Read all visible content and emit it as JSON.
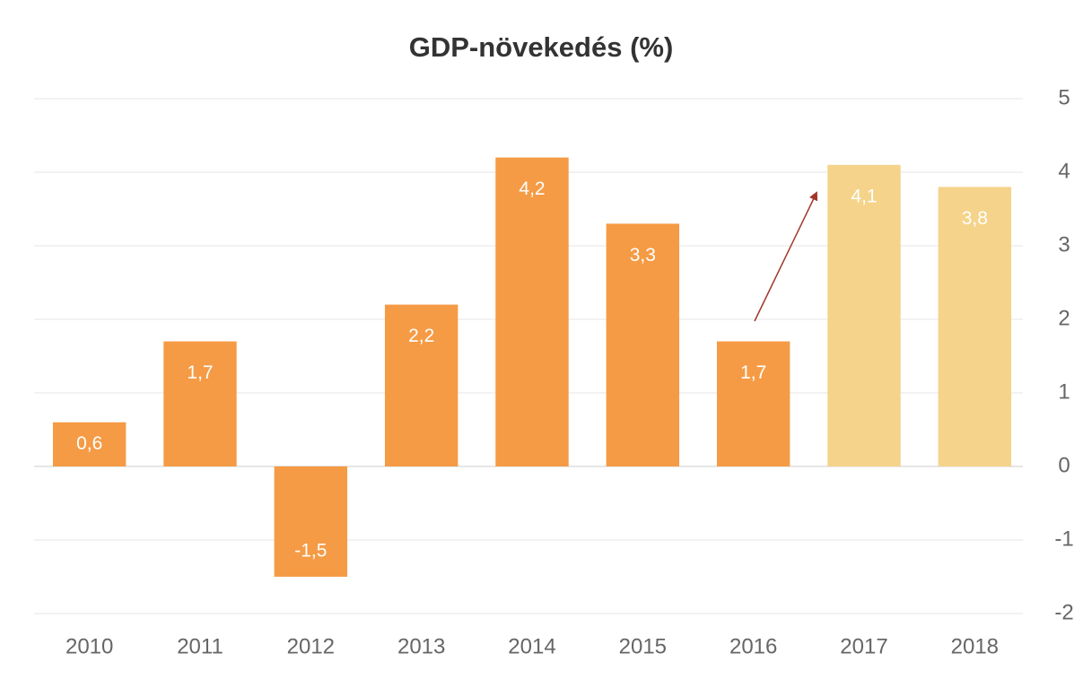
{
  "chart_data": {
    "type": "bar",
    "title": "GDP-növekedés (%)",
    "categories": [
      "2010",
      "2011",
      "2012",
      "2013",
      "2014",
      "2015",
      "2016",
      "2017",
      "2018"
    ],
    "values": [
      0.6,
      1.7,
      -1.5,
      2.2,
      4.2,
      3.3,
      1.7,
      4.1,
      3.8
    ],
    "value_labels": [
      "0,6",
      "1,7",
      "-1,5",
      "2,2",
      "4,2",
      "3,3",
      "1,7",
      "4,1",
      "3,8"
    ],
    "colors": [
      "#f59b45",
      "#f59b45",
      "#f59b45",
      "#f59b45",
      "#f59b45",
      "#f59b45",
      "#f59b45",
      "#f5d38a",
      "#f5d38a"
    ],
    "ylim": [
      -2,
      5
    ],
    "yticks": [
      -2,
      -1,
      0,
      1,
      2,
      3,
      4,
      5
    ],
    "grid": true,
    "y_axis_side": "right"
  }
}
